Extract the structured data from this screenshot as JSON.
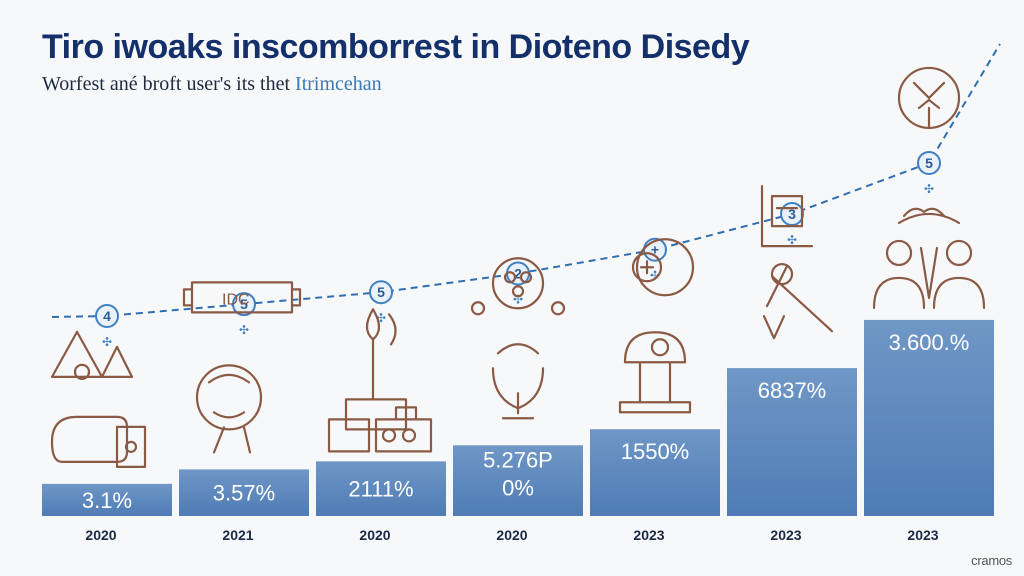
{
  "header": {
    "title": "Tiro iwoaks inscomborrest in Dioteno Disedy",
    "subtitle_main": "Worfest ané broft user's its thet ",
    "subtitle_accent": "Itrimcehan"
  },
  "watermark": "cramos",
  "colors": {
    "bar_top": "#6f97c6",
    "bar_bottom": "#4f7cb5",
    "bar_text": "#ffffff",
    "trend": "#2f6fb0",
    "marker": "#3f7fc1",
    "icon": "#8a5a44",
    "year_label": "#1a2a44"
  },
  "chart_data": {
    "type": "bar",
    "categories": [
      "2020",
      "2021",
      "2020",
      "2020",
      "2023",
      "2023",
      "2023"
    ],
    "bar_labels": [
      [
        "3.1%"
      ],
      [
        "3.57%"
      ],
      [
        "2111%"
      ],
      [
        "5.276P",
        "0%"
      ],
      [
        "1550%"
      ],
      [
        "6837%"
      ],
      [
        "3.600.%"
      ]
    ],
    "values": [
      1.0,
      1.45,
      1.7,
      2.2,
      2.7,
      4.6,
      6.1
    ],
    "ylim": [
      0,
      7
    ],
    "trend_line": {
      "style": "dashed",
      "values": [
        6.6,
        7.3,
        8.0,
        9.1,
        10.5,
        12.6,
        15.6
      ],
      "ylim": [
        0,
        16
      ]
    },
    "trend_markers": [
      "4",
      "5",
      "5",
      "2",
      "+",
      "3",
      "5"
    ],
    "icons": [
      "mountain-tent-icon",
      "battery-icon",
      "plant-lamp-icon",
      "scooter-icon",
      "magnifier-icon",
      "scissors-icon",
      "people-icon"
    ],
    "grid": false,
    "legend": "none"
  }
}
